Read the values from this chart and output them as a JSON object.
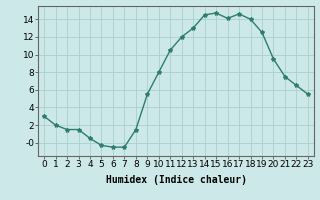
{
  "x": [
    0,
    1,
    2,
    3,
    4,
    5,
    6,
    7,
    8,
    9,
    10,
    11,
    12,
    13,
    14,
    15,
    16,
    17,
    18,
    19,
    20,
    21,
    22,
    23
  ],
  "y": [
    3.0,
    2.0,
    1.5,
    1.5,
    0.5,
    -0.3,
    -0.5,
    -0.5,
    1.5,
    5.5,
    8.0,
    10.5,
    12.0,
    13.0,
    14.5,
    14.7,
    14.1,
    14.6,
    14.0,
    12.5,
    9.5,
    7.5,
    6.5,
    5.5
  ],
  "line_color": "#2e7d6e",
  "marker": "*",
  "marker_size": 3,
  "bg_color": "#cde8e8",
  "grid_color": "#aacfcf",
  "xlabel": "Humidex (Indice chaleur)",
  "xlim": [
    -0.5,
    23.5
  ],
  "ylim": [
    -1.5,
    15.5
  ],
  "yticks": [
    0,
    2,
    4,
    6,
    8,
    10,
    12,
    14
  ],
  "ytick_labels": [
    "-0",
    "2",
    "4",
    "6",
    "8",
    "10",
    "12",
    "14"
  ],
  "xticks": [
    0,
    1,
    2,
    3,
    4,
    5,
    6,
    7,
    8,
    9,
    10,
    11,
    12,
    13,
    14,
    15,
    16,
    17,
    18,
    19,
    20,
    21,
    22,
    23
  ],
  "xlabel_fontsize": 7,
  "tick_fontsize": 6.5
}
